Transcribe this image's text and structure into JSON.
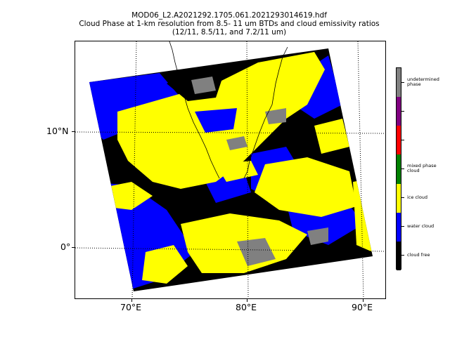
{
  "title": {
    "line1": "MOD06_L2.A2021292.1705.061.2021293014619.hdf",
    "line2": "Cloud Phase at 1-km resolution from 8.5- 11 um BTDs and cloud emissivity ratios",
    "line3": "(12/11, 8.5/11, and 7.2/11 um)"
  },
  "axes": {
    "x_labels": [
      "70°E",
      "80°E",
      "90°E"
    ],
    "y_labels": [
      "10°N",
      "0°"
    ]
  },
  "colorbar": {
    "colors": [
      "#000000",
      "#0000ff",
      "#ffff00",
      "#008000",
      "#ff0000",
      "#800080",
      "#808080"
    ],
    "labels": [
      "cloud free",
      "water cloud",
      "ice cloud",
      "mixed phase\ncloud",
      "",
      "",
      "undetermined\nphase"
    ]
  }
}
